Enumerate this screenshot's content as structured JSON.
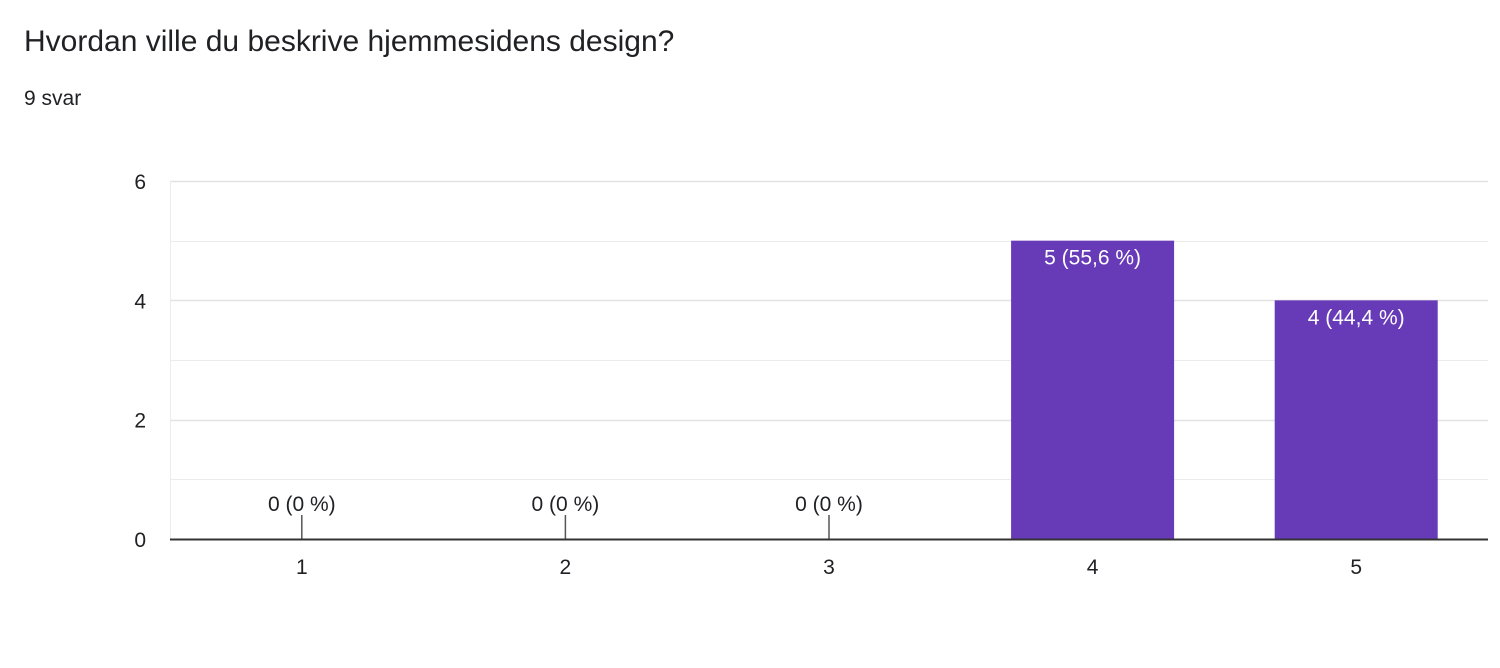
{
  "question": {
    "title": "Hvordan ville du beskrive hjemmesidens design?",
    "response_count": "9 svar"
  },
  "colors": {
    "bar": "#673ab7",
    "grid": "#ececec",
    "axis": "#333333",
    "text": "#202124",
    "label_inside": "#ffffff"
  },
  "chart_data": {
    "type": "bar",
    "title": "Hvordan ville du beskrive hjemmesidens design?",
    "xlabel": "",
    "ylabel": "",
    "categories": [
      "1",
      "2",
      "3",
      "4",
      "5"
    ],
    "values": [
      0,
      0,
      0,
      5,
      4
    ],
    "data_labels": [
      "0 (0 %)",
      "0 (0 %)",
      "0 (0 %)",
      "5 (55,6 %)",
      "4 (44,4 %)"
    ],
    "ylim": [
      0,
      6
    ],
    "y_ticks": [
      0,
      2,
      4,
      6
    ],
    "y_tick_labels": [
      "0",
      "2",
      "4",
      "6"
    ],
    "minor_gridlines": [
      1,
      3,
      5
    ],
    "grid": true
  }
}
